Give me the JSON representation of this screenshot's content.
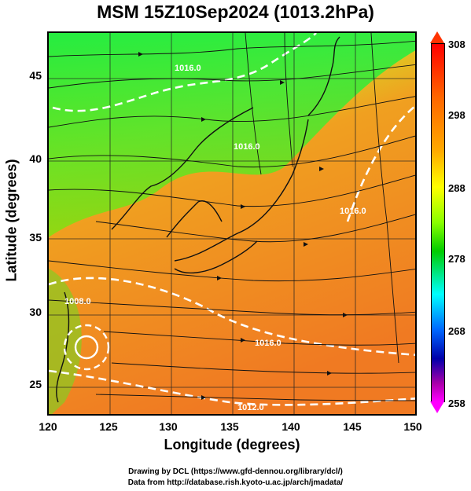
{
  "title": "MSM 15Z10Sep2024 (1013.2hPa)",
  "xaxis": {
    "label": "Longitude (degrees)",
    "ticks": [
      "120",
      "125",
      "130",
      "135",
      "140",
      "145",
      "150"
    ]
  },
  "yaxis": {
    "label": "Latitude  (degrees)",
    "ticks": [
      "45",
      "40",
      "35",
      "30",
      "25"
    ]
  },
  "colorbar": {
    "ticks": [
      "308",
      "298",
      "288",
      "278",
      "268",
      "258"
    ]
  },
  "isobars": [
    "1016.0",
    "1016.0",
    "1012.0",
    "1008.0",
    "1016.0",
    "1016.0"
  ],
  "credits": {
    "line1": "Drawing by DCL (https://www.gfd-dennou.org/library/dcl/)",
    "line2": "Data from http://database.rish.kyoto-u.ac.jp/arch/jmadata/"
  }
}
